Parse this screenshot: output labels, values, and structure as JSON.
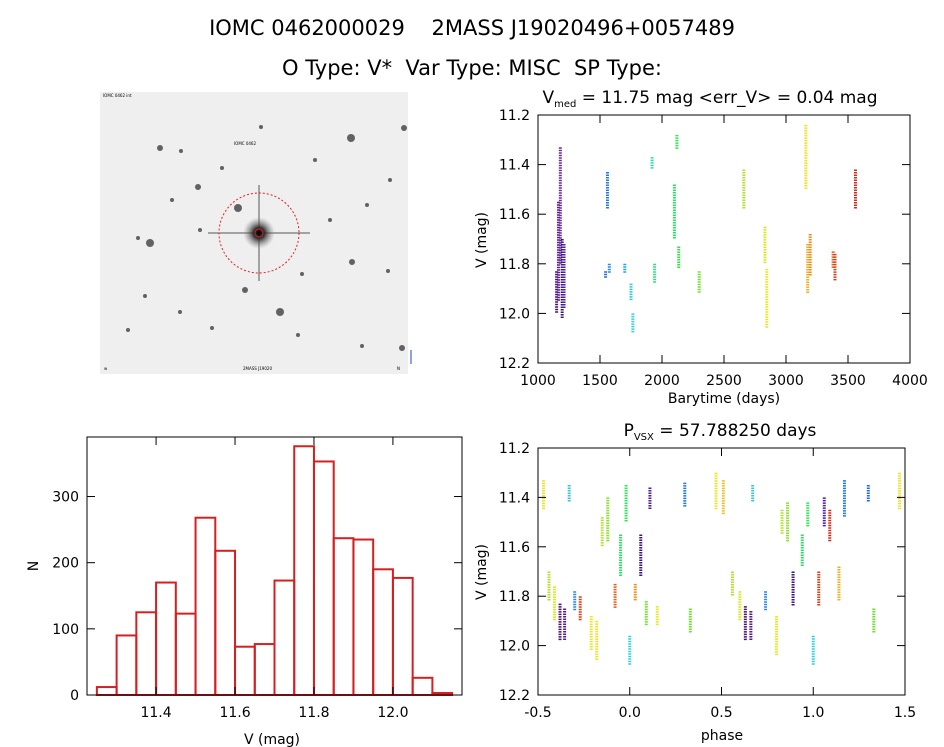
{
  "header": {
    "line1": "IOMC 0462000029    2MASS J19020496+0057489",
    "line2": "O Type: V*  Var Type: MISC  SP Type:"
  },
  "finder": {
    "corner_tl": "IOMC 0462 int",
    "marker_label": "IOMC 0462",
    "corner_bl": "w",
    "bottom_mid": "2MASS J19020",
    "corner_br": "N"
  },
  "chart_data": [
    {
      "type": "scatter",
      "id": "lightcurve",
      "title_main": "V",
      "title_sub": "med",
      "title_rest": " = 11.75 mag <err_V> = 0.04 mag",
      "xlabel": "Barytime (days)",
      "ylabel": "V (mag)",
      "xlim": [
        1000,
        4000
      ],
      "ylim": [
        12.2,
        11.2
      ],
      "xticks": [
        "1000",
        "1500",
        "2000",
        "2500",
        "3000",
        "3500",
        "4000"
      ],
      "yticks": [
        "11.2",
        "11.4",
        "11.6",
        "11.8",
        "12.0",
        "12.2"
      ],
      "segments": [
        {
          "t": 1150,
          "v1": 11.83,
          "v2": 12.0,
          "c": "#4b0f6e"
        },
        {
          "t": 1165,
          "v1": 11.55,
          "v2": 11.95,
          "c": "#5a1a8c"
        },
        {
          "t": 1180,
          "v1": 11.33,
          "v2": 11.8,
          "c": "#6a2a9a"
        },
        {
          "t": 1195,
          "v1": 11.7,
          "v2": 12.02,
          "c": "#3d1480"
        },
        {
          "t": 1210,
          "v1": 11.72,
          "v2": 11.98,
          "c": "#4e1fa0"
        },
        {
          "t": 1545,
          "v1": 11.83,
          "v2": 11.86,
          "c": "#1e6fd6"
        },
        {
          "t": 1560,
          "v1": 11.43,
          "v2": 11.58,
          "c": "#1f78e0"
        },
        {
          "t": 1575,
          "v1": 11.8,
          "v2": 11.84,
          "c": "#2a88e8"
        },
        {
          "t": 1700,
          "v1": 11.8,
          "v2": 11.84,
          "c": "#22a6e6"
        },
        {
          "t": 1750,
          "v1": 11.88,
          "v2": 11.95,
          "c": "#35c8d8"
        },
        {
          "t": 1765,
          "v1": 12.0,
          "v2": 12.08,
          "c": "#35d0e0"
        },
        {
          "t": 1920,
          "v1": 11.37,
          "v2": 11.42,
          "c": "#2ee0a0"
        },
        {
          "t": 1940,
          "v1": 11.8,
          "v2": 11.88,
          "c": "#30dd80"
        },
        {
          "t": 2100,
          "v1": 11.48,
          "v2": 11.7,
          "c": "#28e060"
        },
        {
          "t": 2120,
          "v1": 11.28,
          "v2": 11.34,
          "c": "#30e858"
        },
        {
          "t": 2135,
          "v1": 11.73,
          "v2": 11.82,
          "c": "#38e048"
        },
        {
          "t": 2300,
          "v1": 11.83,
          "v2": 11.92,
          "c": "#70e030"
        },
        {
          "t": 2660,
          "v1": 11.42,
          "v2": 11.58,
          "c": "#b4e030"
        },
        {
          "t": 2830,
          "v1": 11.65,
          "v2": 11.8,
          "c": "#d8e820"
        },
        {
          "t": 2845,
          "v1": 11.82,
          "v2": 12.06,
          "c": "#e8e820"
        },
        {
          "t": 3160,
          "v1": 11.24,
          "v2": 11.5,
          "c": "#f0e028"
        },
        {
          "t": 3175,
          "v1": 11.72,
          "v2": 11.92,
          "c": "#f0b020"
        },
        {
          "t": 3195,
          "v1": 11.68,
          "v2": 11.85,
          "c": "#ef8c1a"
        },
        {
          "t": 3380,
          "v1": 11.75,
          "v2": 11.82,
          "c": "#e06018"
        },
        {
          "t": 3395,
          "v1": 11.76,
          "v2": 11.87,
          "c": "#d84016"
        },
        {
          "t": 3560,
          "v1": 11.42,
          "v2": 11.58,
          "c": "#d02818"
        }
      ]
    },
    {
      "type": "bar",
      "id": "histogram",
      "xlabel": "V (mag)",
      "ylabel": "N",
      "xlim": [
        11.225,
        12.175
      ],
      "ylim": [
        0,
        390
      ],
      "xticks": [
        "11.4",
        "11.6",
        "11.8",
        "12.0"
      ],
      "yticks": [
        "0",
        "100",
        "200",
        "300"
      ],
      "bin_width": 0.05,
      "bin_left": [
        11.25,
        11.3,
        11.35,
        11.4,
        11.45,
        11.5,
        11.55,
        11.6,
        11.65,
        11.7,
        11.75,
        11.8,
        11.85,
        11.9,
        11.95,
        12.0,
        12.05,
        12.1
      ],
      "values": [
        12,
        90,
        125,
        170,
        123,
        268,
        218,
        73,
        77,
        173,
        376,
        353,
        237,
        235,
        190,
        177,
        26,
        3
      ],
      "bar_color": "#d42020"
    },
    {
      "type": "scatter",
      "id": "phased",
      "title_main": "P",
      "title_sub": "VSX",
      "title_rest": " = 57.788250 days",
      "xlabel": "phase",
      "ylabel": "V (mag)",
      "xlim": [
        -0.5,
        1.5
      ],
      "ylim": [
        12.2,
        11.2
      ],
      "xticks": [
        "-0.5",
        "0.0",
        "0.5",
        "1.0",
        "1.5"
      ],
      "yticks": [
        "11.2",
        "11.4",
        "11.6",
        "11.8",
        "12.0",
        "12.2"
      ],
      "segments": [
        {
          "p": -0.47,
          "v1": 11.33,
          "v2": 11.45,
          "c": "#f0e028"
        },
        {
          "p": -0.44,
          "v1": 11.7,
          "v2": 11.82,
          "c": "#b4e030"
        },
        {
          "p": -0.41,
          "v1": 11.76,
          "v2": 11.9,
          "c": "#d8e820"
        },
        {
          "p": -0.38,
          "v1": 11.83,
          "v2": 11.98,
          "c": "#4b0f6e"
        },
        {
          "p": -0.355,
          "v1": 11.85,
          "v2": 11.98,
          "c": "#5a1a8c"
        },
        {
          "p": -0.33,
          "v1": 11.35,
          "v2": 11.42,
          "c": "#35c8d8"
        },
        {
          "p": -0.3,
          "v1": 11.78,
          "v2": 11.86,
          "c": "#2a88e8"
        },
        {
          "p": -0.27,
          "v1": 11.8,
          "v2": 11.9,
          "c": "#d84016"
        },
        {
          "p": -0.21,
          "v1": 11.88,
          "v2": 12.02,
          "c": "#e8e820"
        },
        {
          "p": -0.18,
          "v1": 11.9,
          "v2": 12.06,
          "c": "#f0e028"
        },
        {
          "p": -0.15,
          "v1": 11.48,
          "v2": 11.6,
          "c": "#b4e030"
        },
        {
          "p": -0.12,
          "v1": 11.4,
          "v2": 11.58,
          "c": "#8ce030"
        },
        {
          "p": -0.08,
          "v1": 11.75,
          "v2": 11.85,
          "c": "#e06018"
        },
        {
          "p": -0.05,
          "v1": 11.55,
          "v2": 11.72,
          "c": "#28e060"
        },
        {
          "p": -0.02,
          "v1": 11.35,
          "v2": 11.5,
          "c": "#30e858"
        },
        {
          "p": 0.0,
          "v1": 11.96,
          "v2": 12.08,
          "c": "#35d0e0"
        },
        {
          "p": 0.03,
          "v1": 11.75,
          "v2": 11.82,
          "c": "#ef8c1a"
        },
        {
          "p": 0.06,
          "v1": 11.55,
          "v2": 11.72,
          "c": "#3d1480"
        },
        {
          "p": 0.09,
          "v1": 11.82,
          "v2": 11.92,
          "c": "#70e030"
        },
        {
          "p": 0.11,
          "v1": 11.36,
          "v2": 11.45,
          "c": "#4e1fa0"
        },
        {
          "p": 0.15,
          "v1": 11.84,
          "v2": 11.92,
          "c": "#e8e820"
        },
        {
          "p": 0.3,
          "v1": 11.34,
          "v2": 11.44,
          "c": "#1f78e0"
        },
        {
          "p": 0.33,
          "v1": 11.85,
          "v2": 11.95,
          "c": "#70e030"
        },
        {
          "p": 0.47,
          "v1": 11.3,
          "v2": 11.45,
          "c": "#f0e028"
        },
        {
          "p": 0.51,
          "v1": 11.33,
          "v2": 11.47,
          "c": "#f0c020"
        },
        {
          "p": 0.56,
          "v1": 11.7,
          "v2": 11.8,
          "c": "#b4e030"
        },
        {
          "p": 0.6,
          "v1": 11.78,
          "v2": 11.9,
          "c": "#d8e820"
        },
        {
          "p": 0.63,
          "v1": 11.84,
          "v2": 11.98,
          "c": "#4b0f6e"
        },
        {
          "p": 0.66,
          "v1": 11.86,
          "v2": 11.98,
          "c": "#5a1a8c"
        },
        {
          "p": 0.67,
          "v1": 11.35,
          "v2": 11.42,
          "c": "#35c8d8"
        },
        {
          "p": 0.74,
          "v1": 11.78,
          "v2": 11.86,
          "c": "#2a88e8"
        },
        {
          "p": 0.8,
          "v1": 11.88,
          "v2": 12.04,
          "c": "#e8e820"
        },
        {
          "p": 0.83,
          "v1": 11.45,
          "v2": 11.55,
          "c": "#b4e030"
        },
        {
          "p": 0.86,
          "v1": 11.42,
          "v2": 11.58,
          "c": "#8ce030"
        },
        {
          "p": 0.89,
          "v1": 11.7,
          "v2": 11.84,
          "c": "#3d1480"
        },
        {
          "p": 0.94,
          "v1": 11.55,
          "v2": 11.68,
          "c": "#28e060"
        },
        {
          "p": 0.97,
          "v1": 11.42,
          "v2": 11.52,
          "c": "#30e858"
        },
        {
          "p": 1.0,
          "v1": 11.96,
          "v2": 12.08,
          "c": "#35d0e0"
        },
        {
          "p": 1.03,
          "v1": 11.7,
          "v2": 11.84,
          "c": "#d84016"
        },
        {
          "p": 1.06,
          "v1": 11.4,
          "v2": 11.52,
          "c": "#4e1fa0"
        },
        {
          "p": 1.09,
          "v1": 11.45,
          "v2": 11.58,
          "c": "#d02818"
        },
        {
          "p": 1.14,
          "v1": 11.68,
          "v2": 11.82,
          "c": "#f0b020"
        },
        {
          "p": 1.17,
          "v1": 11.33,
          "v2": 11.48,
          "c": "#1f78e0"
        },
        {
          "p": 1.3,
          "v1": 11.35,
          "v2": 11.42,
          "c": "#1e6fd6"
        },
        {
          "p": 1.33,
          "v1": 11.85,
          "v2": 11.95,
          "c": "#70e030"
        },
        {
          "p": 1.47,
          "v1": 11.3,
          "v2": 11.45,
          "c": "#f0e028"
        }
      ]
    }
  ]
}
